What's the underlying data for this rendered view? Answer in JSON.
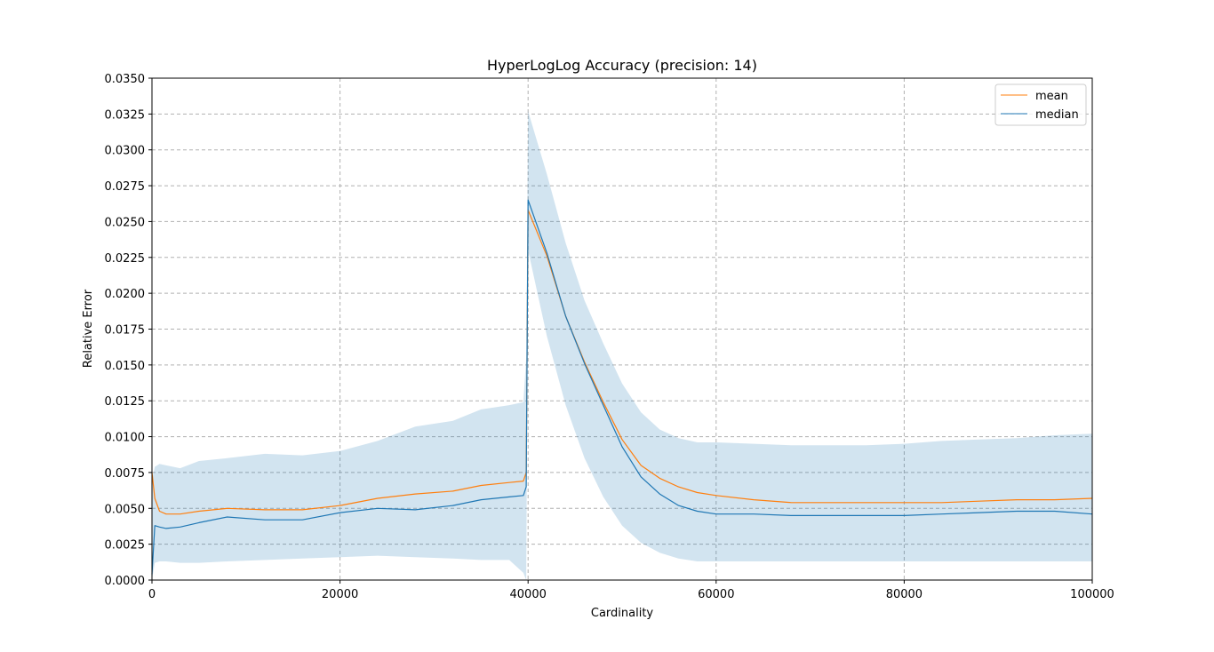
{
  "chart_data": {
    "type": "line",
    "title": "HyperLogLog Accuracy (precision: 14)",
    "xlabel": "Cardinality",
    "ylabel": "Relative Error",
    "xlim": [
      0,
      100000
    ],
    "ylim": [
      0,
      0.035
    ],
    "xticks": [
      "0",
      "20000",
      "40000",
      "60000",
      "80000",
      "100000"
    ],
    "yticks": [
      "0.0000",
      "0.0025",
      "0.0050",
      "0.0075",
      "0.0100",
      "0.0125",
      "0.0150",
      "0.0175",
      "0.0200",
      "0.0225",
      "0.0250",
      "0.0275",
      "0.0300",
      "0.0325",
      "0.0350"
    ],
    "grid": true,
    "legend_position": "upper right",
    "x": [
      0,
      300,
      800,
      1500,
      3000,
      5000,
      8000,
      12000,
      16000,
      20000,
      24000,
      28000,
      32000,
      35000,
      38000,
      39500,
      39800,
      40000,
      42000,
      44000,
      46000,
      48000,
      50000,
      52000,
      54000,
      56000,
      58000,
      60000,
      64000,
      68000,
      72000,
      76000,
      80000,
      84000,
      88000,
      92000,
      96000,
      100000
    ],
    "series": [
      {
        "name": "mean",
        "color": "#ff7f0e",
        "values": [
          0.0075,
          0.0057,
          0.0048,
          0.0046,
          0.0046,
          0.0048,
          0.005,
          0.0049,
          0.0049,
          0.0052,
          0.0057,
          0.006,
          0.0062,
          0.0066,
          0.0068,
          0.0069,
          0.0075,
          0.0258,
          0.0226,
          0.0184,
          0.0152,
          0.0124,
          0.0098,
          0.008,
          0.0071,
          0.0065,
          0.0061,
          0.0059,
          0.0056,
          0.0054,
          0.0054,
          0.0054,
          0.0054,
          0.0054,
          0.0055,
          0.0056,
          0.0056,
          0.0057
        ]
      },
      {
        "name": "median",
        "color": "#1f77b4",
        "values": [
          0.0004,
          0.0038,
          0.0037,
          0.0036,
          0.0037,
          0.004,
          0.0044,
          0.0042,
          0.0042,
          0.0047,
          0.005,
          0.0049,
          0.0052,
          0.0056,
          0.0058,
          0.0059,
          0.0065,
          0.0265,
          0.0228,
          0.0184,
          0.0151,
          0.0122,
          0.0093,
          0.0072,
          0.006,
          0.0052,
          0.0048,
          0.0046,
          0.0046,
          0.0045,
          0.0045,
          0.0045,
          0.0045,
          0.0046,
          0.0047,
          0.0048,
          0.0048,
          0.0046
        ]
      }
    ],
    "band": {
      "color": "#1f77b4",
      "opacity": 0.2,
      "upper": [
        0.007,
        0.0079,
        0.0081,
        0.008,
        0.0078,
        0.0083,
        0.0085,
        0.0088,
        0.0087,
        0.009,
        0.0097,
        0.0107,
        0.0111,
        0.0119,
        0.0122,
        0.0124,
        0.0155,
        0.0327,
        0.0283,
        0.0235,
        0.0195,
        0.0165,
        0.0137,
        0.0117,
        0.0105,
        0.0099,
        0.0096,
        0.0096,
        0.0095,
        0.0094,
        0.0094,
        0.0094,
        0.0095,
        0.0097,
        0.0098,
        0.0099,
        0.0101,
        0.0102
      ],
      "lower": [
        0.0,
        0.0012,
        0.0013,
        0.0013,
        0.0012,
        0.0012,
        0.0013,
        0.0014,
        0.0015,
        0.0016,
        0.0017,
        0.0016,
        0.0015,
        0.0014,
        0.0014,
        0.0005,
        0.0,
        0.023,
        0.017,
        0.0122,
        0.0085,
        0.0058,
        0.0038,
        0.0026,
        0.0019,
        0.0015,
        0.0013,
        0.0013,
        0.0013,
        0.0013,
        0.0013,
        0.0013,
        0.0013,
        0.0013,
        0.0013,
        0.0013,
        0.0013,
        0.0013
      ]
    }
  }
}
